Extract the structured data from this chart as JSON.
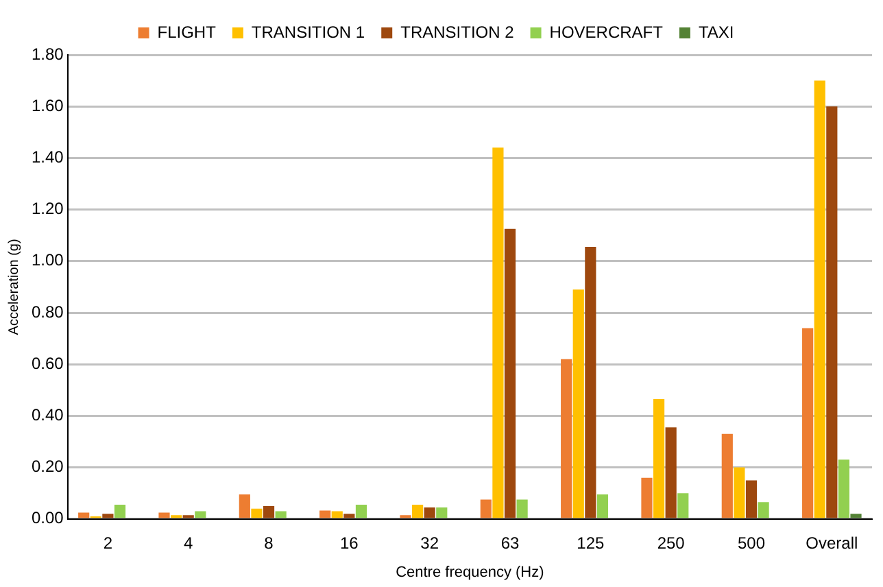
{
  "chart_data": {
    "type": "bar",
    "xlabel": "Centre frequency (Hz)",
    "ylabel": "Acceleration (g)",
    "categories": [
      "2",
      "4",
      "8",
      "16",
      "32",
      "63",
      "125",
      "250",
      "500",
      "Overall"
    ],
    "series": [
      {
        "name": "FLIGHT",
        "color": "#ed7d31",
        "values": [
          0.025,
          0.025,
          0.095,
          0.033,
          0.015,
          0.075,
          0.62,
          0.16,
          0.33,
          0.74
        ]
      },
      {
        "name": "TRANSITION 1",
        "color": "#ffc000",
        "values": [
          0.01,
          0.015,
          0.04,
          0.03,
          0.055,
          1.44,
          0.89,
          0.465,
          0.2,
          1.7
        ]
      },
      {
        "name": "TRANSITION 2",
        "color": "#9e480e",
        "values": [
          0.02,
          0.015,
          0.05,
          0.02,
          0.045,
          1.125,
          1.055,
          0.355,
          0.15,
          1.6
        ]
      },
      {
        "name": "HOVERCRAFT",
        "color": "#92d050",
        "values": [
          0.055,
          0.03,
          0.03,
          0.055,
          0.045,
          0.075,
          0.095,
          0.1,
          0.065,
          0.23
        ]
      },
      {
        "name": "TAXI",
        "color": "#548235",
        "values": [
          null,
          null,
          null,
          null,
          null,
          null,
          null,
          null,
          null,
          0.02
        ]
      }
    ],
    "ylim": [
      0,
      1.8
    ],
    "yticks": [
      {
        "value": 0,
        "label": "0.00"
      },
      {
        "value": 0.2,
        "label": "0.20"
      },
      {
        "value": 0.4,
        "label": "0.40"
      },
      {
        "value": 0.6,
        "label": "0.60"
      },
      {
        "value": 0.8,
        "label": "0.80"
      },
      {
        "value": 1,
        "label": "1.00"
      },
      {
        "value": 1.2,
        "label": "1.20"
      },
      {
        "value": 1.4,
        "label": "1.40"
      },
      {
        "value": 1.6,
        "label": "1.60"
      },
      {
        "value": 1.8,
        "label": "1.80"
      }
    ],
    "grid": "y",
    "legend": "top"
  }
}
